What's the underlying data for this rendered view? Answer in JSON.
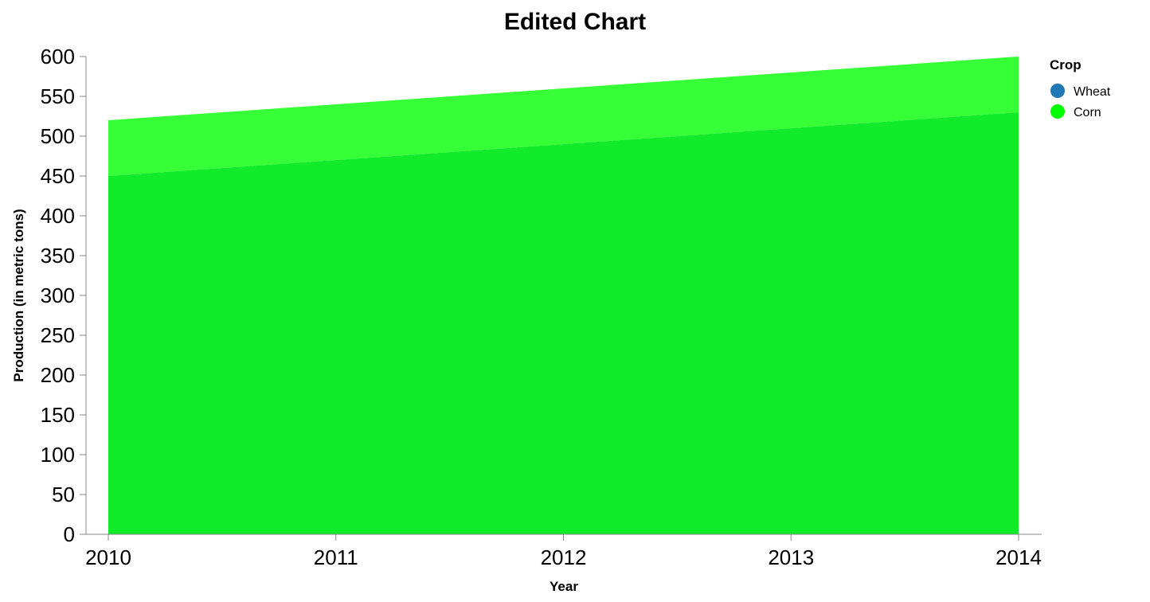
{
  "chart_data": {
    "type": "area",
    "stacked": true,
    "title": "Edited Chart",
    "xlabel": "Year",
    "ylabel": "Production (in metric tons)",
    "x": [
      2010,
      2011,
      2012,
      2013,
      2014
    ],
    "x_ticks": [
      "2010",
      "2011",
      "2012",
      "2013",
      "2014"
    ],
    "ylim": [
      0,
      600
    ],
    "y_ticks": [
      "0",
      "50",
      "100",
      "150",
      "200",
      "250",
      "300",
      "350",
      "400",
      "450",
      "500",
      "550",
      "600"
    ],
    "grid": false,
    "legend": {
      "title": "Crop",
      "position": "top-right"
    },
    "series": [
      {
        "name": "Wheat",
        "values": [
          450,
          470,
          490,
          510,
          530
        ],
        "color": "#12eb2a",
        "legend_color": "#1f77b4"
      },
      {
        "name": "Corn",
        "values": [
          70,
          70,
          70,
          70,
          70
        ],
        "color": "#37ff37",
        "legend_color": "#00ff00"
      }
    ]
  }
}
